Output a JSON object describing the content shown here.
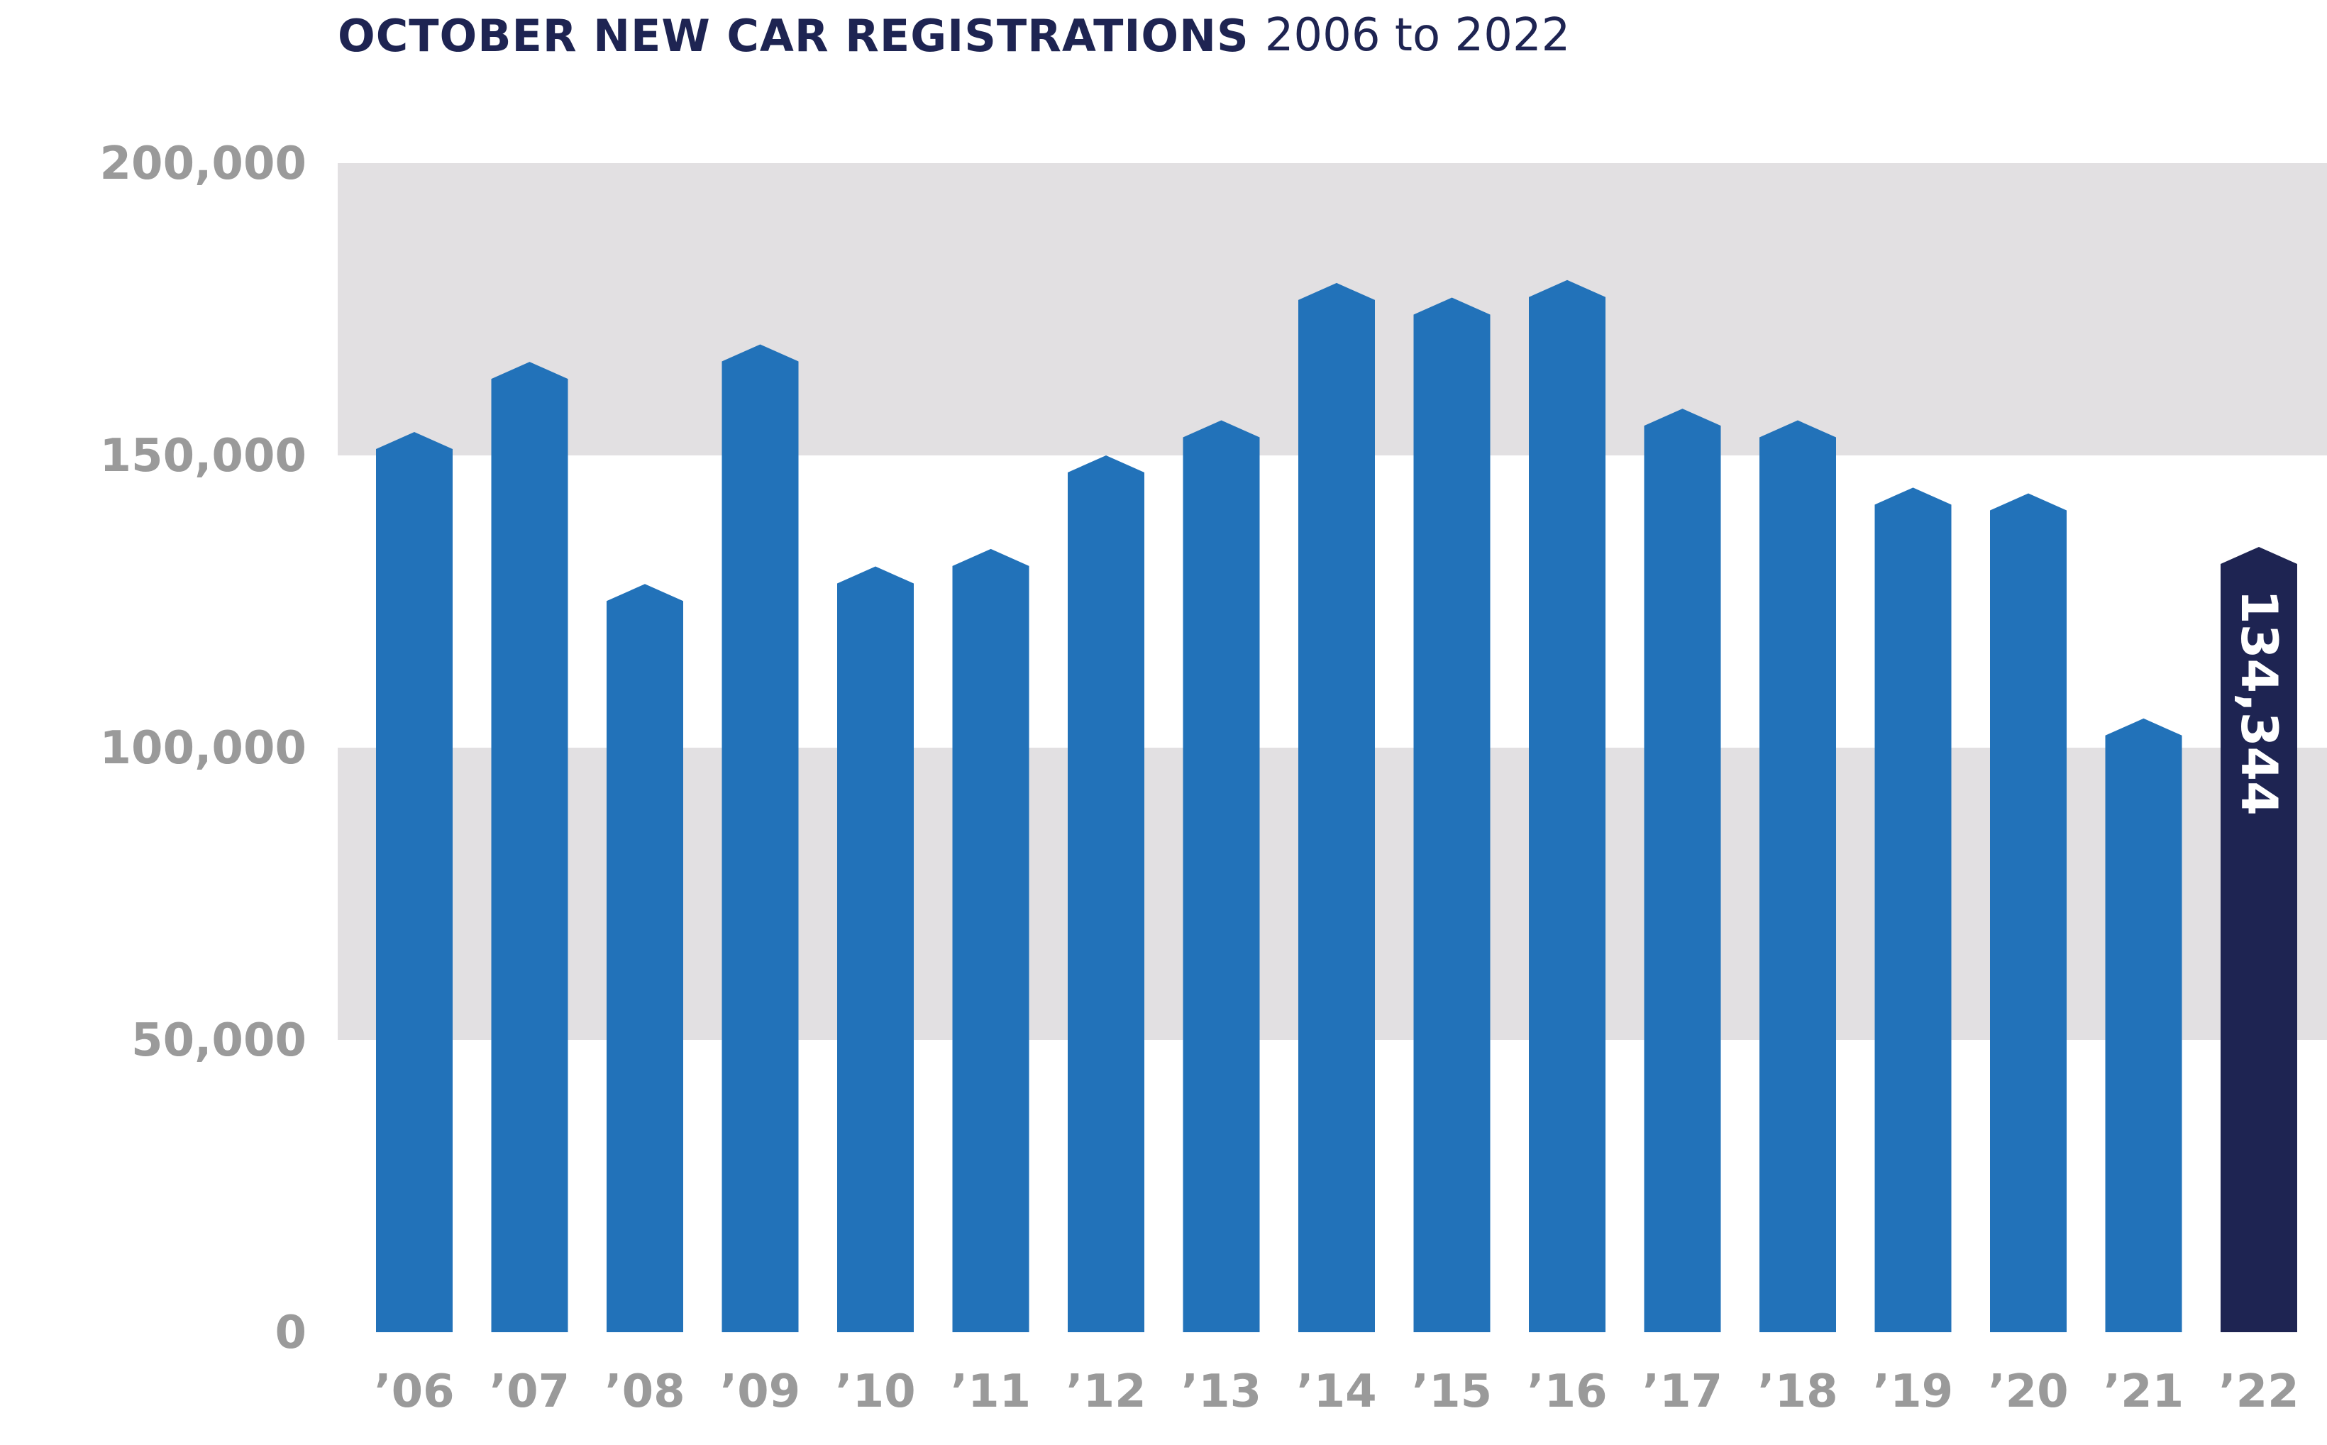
{
  "title": {
    "main": "OCTOBER NEW CAR REGISTRATIONS",
    "sub": "2006 to 2022"
  },
  "colors": {
    "bar": "#2272b9",
    "highlight_bar": "#1e2452",
    "band": "#e2e0e2",
    "axis_text": "#9a9a9a",
    "title": "#1e2452",
    "label_text": "#ffffff"
  },
  "chart_data": {
    "type": "bar",
    "title": "OCTOBER NEW CAR REGISTRATIONS 2006 to 2022",
    "categories": [
      "’06",
      "’07",
      "’08",
      "’09",
      "’10",
      "’11",
      "’12",
      "’13",
      "’14",
      "’15",
      "’16",
      "’17",
      "’18",
      "’19",
      "’20",
      "’21",
      "’22"
    ],
    "values": [
      154000,
      166000,
      128000,
      169000,
      131000,
      134000,
      150000,
      156000,
      179500,
      177000,
      180000,
      158000,
      156000,
      144500,
      143500,
      105000,
      134344
    ],
    "highlight_index": 16,
    "data_labels": [
      {
        "index": 16,
        "text": "134,344"
      }
    ],
    "ylim": [
      0,
      200000
    ],
    "yticks": [
      0,
      50000,
      100000,
      150000,
      200000
    ],
    "ytick_labels": [
      "0",
      "50,000",
      "100,000",
      "150,000",
      "200,000"
    ],
    "xlabel": "",
    "ylabel": "",
    "bands": [
      [
        50000,
        100000
      ],
      [
        150000,
        200000
      ]
    ]
  }
}
